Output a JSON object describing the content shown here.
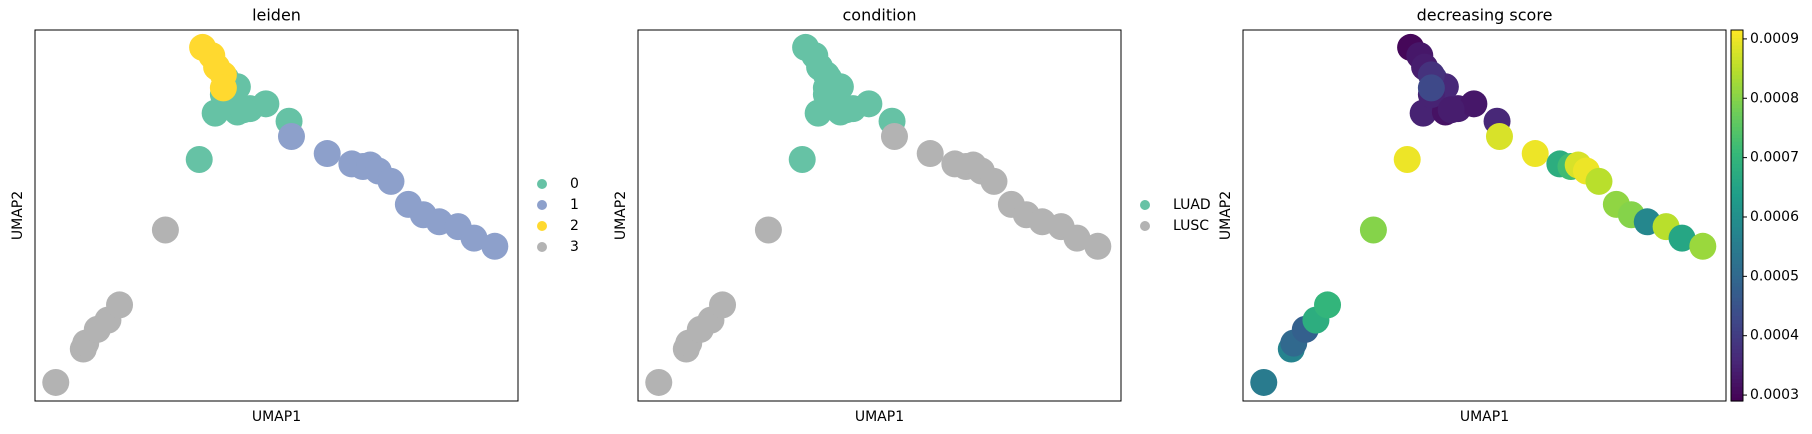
{
  "chart_data": [
    {
      "type": "scatter",
      "title": "leiden",
      "xlabel": "UMAP1",
      "ylabel": "UMAP2",
      "xlim": [
        0,
        10
      ],
      "ylim": [
        0,
        10
      ],
      "legend": "right",
      "series": [
        {
          "name": "0",
          "color": "#66c2a5",
          "x": [
            3.4,
            3.73,
            4.19,
            4.45,
            4.78,
            5.26,
            3.95,
            4.19,
            3.9,
            4.31
          ],
          "values": [
            6.51,
            7.76,
            7.79,
            7.88,
            8.01,
            7.54,
            8.69,
            8.47,
            8.26,
            7.85
          ]
        },
        {
          "name": "1",
          "color": "#8da0cb",
          "x": [
            5.31,
            6.05,
            6.56,
            6.79,
            6.94,
            7.11,
            7.37,
            7.73,
            8.04,
            8.37,
            8.76,
            9.09,
            9.52
          ],
          "values": [
            7.13,
            6.67,
            6.39,
            6.32,
            6.36,
            6.2,
            5.92,
            5.3,
            5.02,
            4.83,
            4.7,
            4.39,
            4.17
          ]
        },
        {
          "name": "2",
          "color": "#ffd92f",
          "x": [
            3.47,
            3.66,
            3.76,
            3.9,
            3.9
          ],
          "values": [
            9.53,
            9.31,
            9.0,
            8.79,
            8.44
          ]
        },
        {
          "name": "3",
          "color": "#b3b3b3",
          "x": [
            0.43,
            1.0,
            1.05,
            1.29,
            1.51,
            1.75,
            2.7
          ],
          "values": [
            0.5,
            1.4,
            1.56,
            1.93,
            2.18,
            2.59,
            4.61
          ]
        }
      ]
    },
    {
      "type": "scatter",
      "title": "condition",
      "xlabel": "UMAP1",
      "ylabel": "UMAP2",
      "xlim": [
        0,
        10
      ],
      "ylim": [
        0,
        10
      ],
      "legend": "right",
      "series": [
        {
          "name": "LUAD",
          "color": "#66c2a5",
          "x": [
            3.4,
            3.73,
            4.19,
            4.45,
            4.78,
            5.26,
            3.95,
            4.19,
            3.9,
            4.31,
            3.47,
            3.66,
            3.76,
            3.9,
            3.9
          ],
          "values": [
            6.51,
            7.76,
            7.79,
            7.88,
            8.01,
            7.54,
            8.69,
            8.47,
            8.26,
            7.85,
            9.53,
            9.31,
            9.0,
            8.79,
            8.44
          ]
        },
        {
          "name": "LUSC",
          "color": "#b3b3b3",
          "x": [
            5.31,
            6.05,
            6.56,
            6.79,
            6.94,
            7.11,
            7.37,
            7.73,
            8.04,
            8.37,
            8.76,
            9.09,
            9.52,
            0.43,
            1.0,
            1.05,
            1.29,
            1.51,
            1.75,
            2.7
          ],
          "values": [
            7.13,
            6.67,
            6.39,
            6.32,
            6.36,
            6.2,
            5.92,
            5.3,
            5.02,
            4.83,
            4.7,
            4.39,
            4.17,
            0.5,
            1.4,
            1.56,
            1.93,
            2.18,
            2.59,
            4.61
          ]
        }
      ]
    },
    {
      "type": "scatter",
      "title": "decreasing score",
      "xlabel": "UMAP1",
      "ylabel": "UMAP2",
      "xlim": [
        0,
        10
      ],
      "ylim": [
        0,
        10
      ],
      "colormap": "viridis",
      "clim": [
        0.00029,
        0.000915
      ],
      "cticks": [
        0.0003,
        0.0004,
        0.0005,
        0.0006,
        0.0007,
        0.0008,
        0.0009
      ],
      "series": [
        {
          "x": [
            0.43,
            1.0,
            1.05,
            1.29,
            1.51,
            1.75,
            2.7,
            3.4,
            3.73,
            4.19,
            4.45,
            4.78,
            5.26,
            3.95,
            4.19,
            3.9,
            4.31,
            5.31,
            6.05,
            6.56,
            6.79,
            6.94,
            7.11,
            7.37,
            7.73,
            8.04,
            8.37,
            8.76,
            9.09,
            9.52,
            3.47,
            3.66,
            3.76,
            3.9,
            3.9
          ],
          "values": [
            0.5,
            1.4,
            1.56,
            1.93,
            2.18,
            2.59,
            4.61,
            6.51,
            7.76,
            7.79,
            7.88,
            8.01,
            7.54,
            8.69,
            8.47,
            8.26,
            7.85,
            7.13,
            6.67,
            6.39,
            6.32,
            6.36,
            6.2,
            5.92,
            5.3,
            5.02,
            4.83,
            4.7,
            4.39,
            4.17,
            9.53,
            9.31,
            9.0,
            8.79,
            8.44
          ],
          "color_values": [
            0.00055,
            0.00057,
            0.0005,
            0.00048,
            0.00068,
            0.0007,
            0.0008,
            0.0009,
            0.00035,
            0.00032,
            0.00034,
            0.00033,
            0.00036,
            0.0004,
            0.00036,
            0.00035,
            0.00034,
            0.00088,
            0.0009,
            0.00068,
            0.00072,
            0.00088,
            0.0009,
            0.00085,
            0.00081,
            0.0008,
            0.00058,
            0.00085,
            0.00066,
            0.00082,
            0.0003,
            0.00033,
            0.00034,
            0.00038,
            0.00043
          ]
        }
      ]
    }
  ]
}
